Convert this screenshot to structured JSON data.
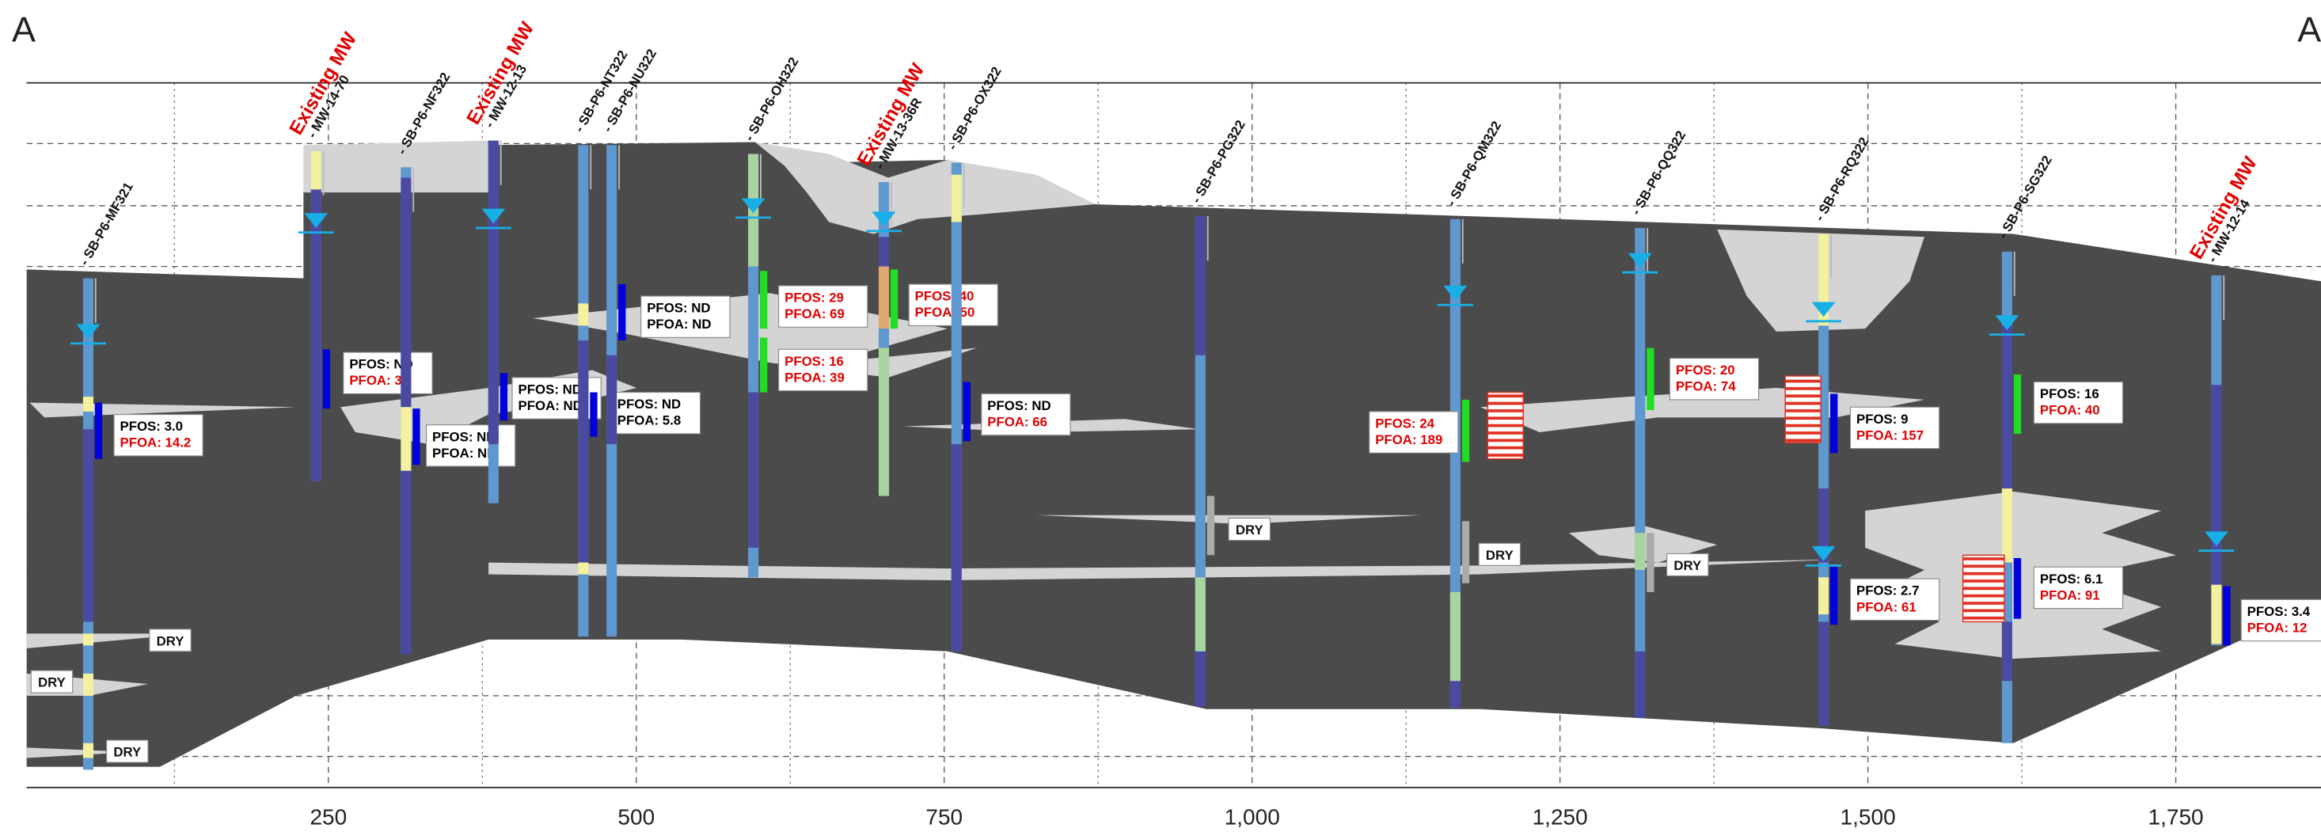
{
  "section": {
    "left": "A",
    "right": "A"
  },
  "axis": {
    "xlim": [
      5,
      1868
    ],
    "xticks": [
      250,
      500,
      750,
      {
        "value": 1000,
        "label": "1,000"
      },
      {
        "value": 1250,
        "label": "1,250"
      },
      {
        "value": 1500,
        "label": "1,500"
      },
      {
        "value": 1750,
        "label": "1,750"
      }
    ]
  },
  "borings": [
    {
      "name": "- SB-P6-MF321",
      "x": 55,
      "results": [
        [
          {
            "text": "PFOS: 3.0",
            "color": "#000000"
          },
          {
            "text": "PFOA: 14.2",
            "color": "#e00000"
          }
        ]
      ],
      "dry": [
        "DRY",
        "DRY",
        "DRY"
      ]
    },
    {
      "name": "- MW-14-70",
      "tag": "Existing MW",
      "x": 240,
      "results": [
        [
          {
            "text": "PFOS: ND",
            "color": "#000000"
          },
          {
            "text": "PFOA: 38",
            "color": "#e00000"
          }
        ]
      ]
    },
    {
      "name": "- SB-P6-NF322",
      "x": 313,
      "results": [
        [
          {
            "text": "PFOS: ND",
            "color": "#000000"
          },
          {
            "text": "PFOA: ND",
            "color": "#000000"
          }
        ]
      ]
    },
    {
      "name": "- MW-12-13",
      "tag": "Existing MW",
      "x": 384,
      "results": [
        [
          {
            "text": "PFOS: ND",
            "color": "#000000"
          },
          {
            "text": "PFOA: ND",
            "color": "#000000"
          }
        ]
      ]
    },
    {
      "name": "- SB-P6-NT322",
      "x": 457,
      "results": [
        [
          {
            "text": "PFOS: ND",
            "color": "#000000"
          },
          {
            "text": "PFOA: 5.8",
            "color": "#000000"
          }
        ]
      ]
    },
    {
      "name": "- SB-P6-NU322",
      "x": 480,
      "results": [
        [
          {
            "text": "PFOS: ND",
            "color": "#000000"
          },
          {
            "text": "PFOA: ND",
            "color": "#000000"
          }
        ]
      ]
    },
    {
      "name": "- SB-P6-OH322",
      "x": 595,
      "results": [
        [
          {
            "text": "PFOS: 29",
            "color": "#e00000"
          },
          {
            "text": "PFOA: 69",
            "color": "#e00000"
          }
        ],
        [
          {
            "text": "PFOS: 16",
            "color": "#e00000"
          },
          {
            "text": "PFOA: 39",
            "color": "#e00000"
          }
        ]
      ]
    },
    {
      "name": "- MW-13-36R",
      "tag": "Existing MW",
      "x": 701,
      "results": [
        [
          {
            "text": "PFOS: 40",
            "color": "#e00000"
          },
          {
            "text": "PFOA: 50",
            "color": "#e00000"
          }
        ]
      ]
    },
    {
      "name": "- SB-P6-OX322",
      "x": 760,
      "results": [
        [
          {
            "text": "PFOS: ND",
            "color": "#000000"
          },
          {
            "text": "PFOA: 66",
            "color": "#e00000"
          }
        ]
      ]
    },
    {
      "name": "- SB-P6-PG322",
      "x": 958,
      "dry": [
        "DRY"
      ]
    },
    {
      "name": "- SB-P6-QM322",
      "x": 1165,
      "results": [
        [
          {
            "text": "PFOS: 24",
            "color": "#e00000"
          },
          {
            "text": "PFOA: 189",
            "color": "#e00000"
          }
        ]
      ],
      "dry": [
        "DRY"
      ]
    },
    {
      "name": "- SB-P6-QQ322",
      "x": 1315,
      "results": [
        [
          {
            "text": "PFOS: 20",
            "color": "#e00000"
          },
          {
            "text": "PFOA: 74",
            "color": "#e00000"
          }
        ]
      ],
      "dry": [
        "DRY"
      ]
    },
    {
      "name": "- SB-P6-RQ322",
      "x": 1464,
      "results": [
        [
          {
            "text": "PFOS: 9",
            "color": "#000000"
          },
          {
            "text": "PFOA: 157",
            "color": "#e00000"
          }
        ],
        [
          {
            "text": "PFOS: 2.7",
            "color": "#000000"
          },
          {
            "text": "PFOA: 61",
            "color": "#e00000"
          }
        ]
      ]
    },
    {
      "name": "- SB-P6-SG322",
      "x": 1613,
      "results": [
        [
          {
            "text": "PFOS: 16",
            "color": "#000000"
          },
          {
            "text": "PFOA: 40",
            "color": "#e00000"
          }
        ],
        [
          {
            "text": "PFOS: 6.1",
            "color": "#000000"
          },
          {
            "text": "PFOA: 91",
            "color": "#e00000"
          }
        ]
      ]
    },
    {
      "name": "- MW-12-14",
      "tag": "Existing MW",
      "x": 1783,
      "results": [
        [
          {
            "text": "PFOS: 3.4",
            "color": "#000000"
          },
          {
            "text": "PFOA: 12",
            "color": "#e00000"
          }
        ]
      ]
    }
  ]
}
